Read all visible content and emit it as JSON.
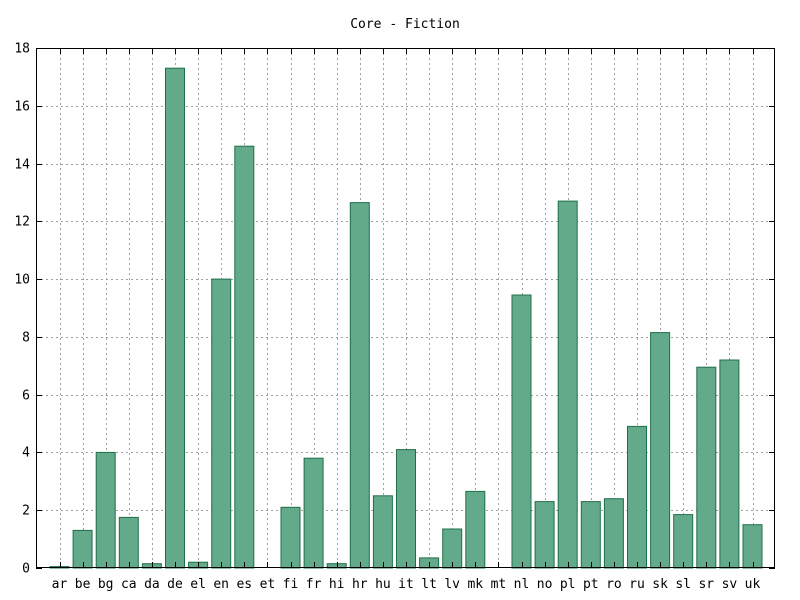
{
  "chart_data": {
    "type": "bar",
    "title": "Core - Fiction",
    "xlabel": "",
    "ylabel": "",
    "ylim": [
      0,
      18
    ],
    "yticks": [
      0,
      2,
      4,
      6,
      8,
      10,
      12,
      14,
      16,
      18
    ],
    "grid": true,
    "bar_color": "#63aa8a",
    "categories": [
      "ar",
      "be",
      "bg",
      "ca",
      "da",
      "de",
      "el",
      "en",
      "es",
      "et",
      "fi",
      "fr",
      "hi",
      "hr",
      "hu",
      "it",
      "lt",
      "lv",
      "mk",
      "mt",
      "nl",
      "no",
      "pl",
      "pt",
      "ro",
      "ru",
      "sk",
      "sl",
      "sr",
      "sv",
      "uk"
    ],
    "values": [
      0.05,
      1.3,
      4.0,
      1.75,
      0.15,
      17.3,
      0.2,
      10.0,
      14.6,
      0,
      2.1,
      3.8,
      0.15,
      12.65,
      2.5,
      4.1,
      0.35,
      1.35,
      2.65,
      0,
      9.45,
      2.3,
      12.7,
      2.3,
      2.4,
      4.9,
      8.15,
      1.85,
      6.95,
      7.2,
      1.5
    ]
  }
}
